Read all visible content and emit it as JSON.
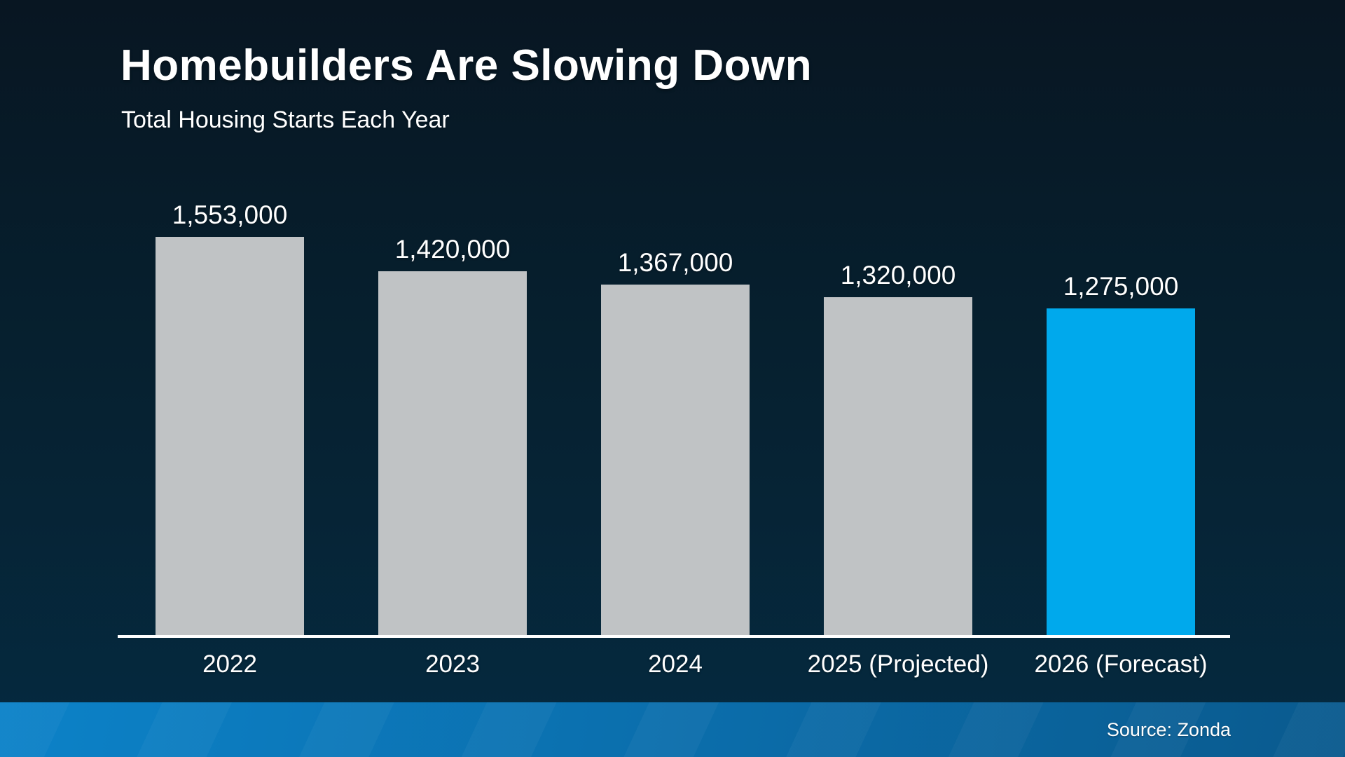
{
  "header": {
    "title": "Homebuilders Are Slowing Down",
    "subtitle": "Total Housing Starts Each Year"
  },
  "footer": {
    "source": "Source: Zonda"
  },
  "colors": {
    "background_top": "#081622",
    "background_bottom": "#052a40",
    "bar_default": "#c0c3c5",
    "bar_highlight": "#00a9ec",
    "axis_line": "#ffffff",
    "text": "#ffffff",
    "footer_gradient_left": "#0c82c8",
    "footer_gradient_right": "#0a5a8e"
  },
  "chart_data": {
    "type": "bar",
    "title": "Homebuilders Are Slowing Down",
    "subtitle": "Total Housing Starts Each Year",
    "categories": [
      "2022",
      "2023",
      "2024",
      "2025 (Projected)",
      "2026 (Forecast)"
    ],
    "values": [
      1553000,
      1420000,
      1367000,
      1320000,
      1275000
    ],
    "value_labels": [
      "1,553,000",
      "1,420,000",
      "1,367,000",
      "1,320,000",
      "1,275,000"
    ],
    "bar_colors": [
      "#c0c3c5",
      "#c0c3c5",
      "#c0c3c5",
      "#c0c3c5",
      "#00a9ec"
    ],
    "highlight_index": 4,
    "xlabel": "",
    "ylabel": "",
    "ylim": [
      0,
      1600000
    ],
    "grid": false,
    "legend": false,
    "data_labels": true,
    "source": "Source: Zonda"
  }
}
